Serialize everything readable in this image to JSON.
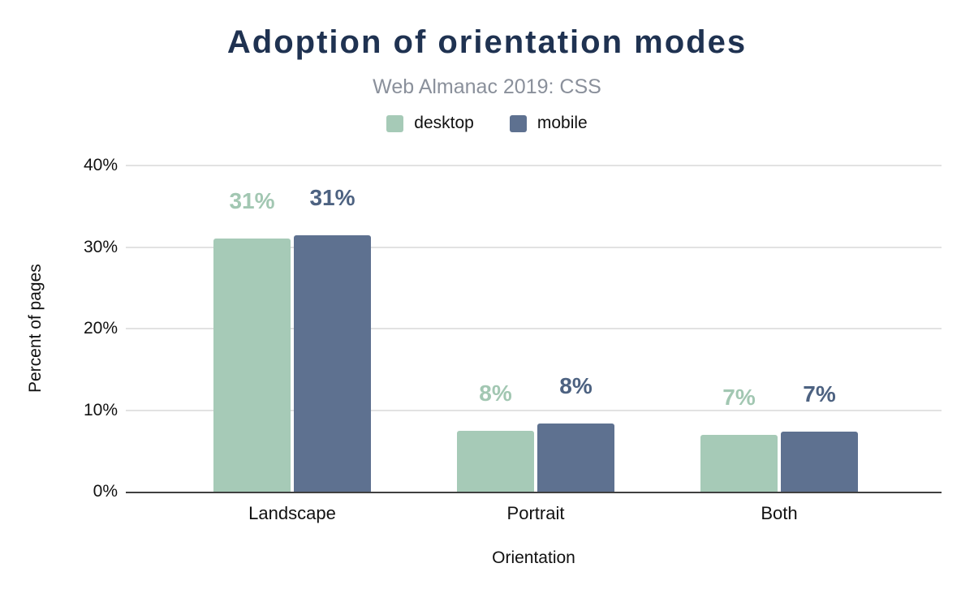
{
  "header": {
    "title": "Adoption of orientation modes",
    "subtitle": "Web Almanac 2019: CSS"
  },
  "legend": [
    {
      "label": "desktop",
      "color": "#a6cab7"
    },
    {
      "label": "mobile",
      "color": "#5e7190"
    }
  ],
  "colors": {
    "title": "#1f3251",
    "subtitle": "#8a909b",
    "text": "#111111",
    "gridline": "#e2e2e2",
    "axis_line": "#404040",
    "desktop_bar": "#a6cab7",
    "desktop_label": "#a2c7b2",
    "mobile_bar": "#5e7190",
    "mobile_label": "#4d6281"
  },
  "chart_data": {
    "type": "bar",
    "title": "Adoption of orientation modes",
    "subtitle": "Web Almanac 2019: CSS",
    "categories": [
      "Landscape",
      "Portrait",
      "Both"
    ],
    "series": [
      {
        "name": "desktop",
        "color": "#a6cab7",
        "label_color": "#a2c7b2",
        "values": [
          31.0,
          7.5,
          7.0
        ],
        "labels": [
          "31%",
          "8%",
          "7%"
        ]
      },
      {
        "name": "mobile",
        "color": "#5e7190",
        "label_color": "#4d6281",
        "values": [
          31.4,
          8.4,
          7.4
        ],
        "labels": [
          "31%",
          "8%",
          "7%"
        ]
      }
    ],
    "xlabel": "Orientation",
    "ylabel": "Percent of pages",
    "ylim": [
      0,
      40
    ],
    "yticks": [
      0,
      10,
      20,
      30,
      40
    ],
    "ytick_labels": [
      "0%",
      "10%",
      "20%",
      "30%",
      "40%"
    ],
    "grid": true,
    "legend_position": "top"
  }
}
